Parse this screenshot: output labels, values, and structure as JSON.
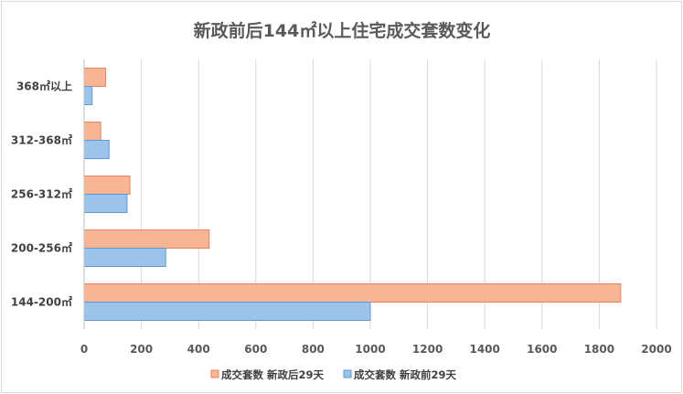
{
  "chart_data": {
    "type": "bar",
    "orientation": "horizontal",
    "title": "新政前后144㎡以上住宅成交套数变化",
    "categories": [
      "144-200㎡",
      "200-256㎡",
      "256-312㎡",
      "312-368㎡",
      "368㎡以上"
    ],
    "series": [
      {
        "name": "成交套数 新政后29天",
        "color": "#f8b595",
        "stroke": "#e8835a",
        "values": [
          1875,
          437,
          160,
          58,
          75
        ]
      },
      {
        "name": "成交套数 新政前29天",
        "color": "#9dc3ea",
        "stroke": "#5b9bd5",
        "values": [
          1000,
          285,
          150,
          87,
          28
        ]
      }
    ],
    "xlim": [
      0,
      2000
    ],
    "xticks": [
      0,
      200,
      400,
      600,
      800,
      1000,
      1200,
      1400,
      1600,
      1800,
      2000
    ],
    "grid": true,
    "legend_position": "bottom"
  }
}
